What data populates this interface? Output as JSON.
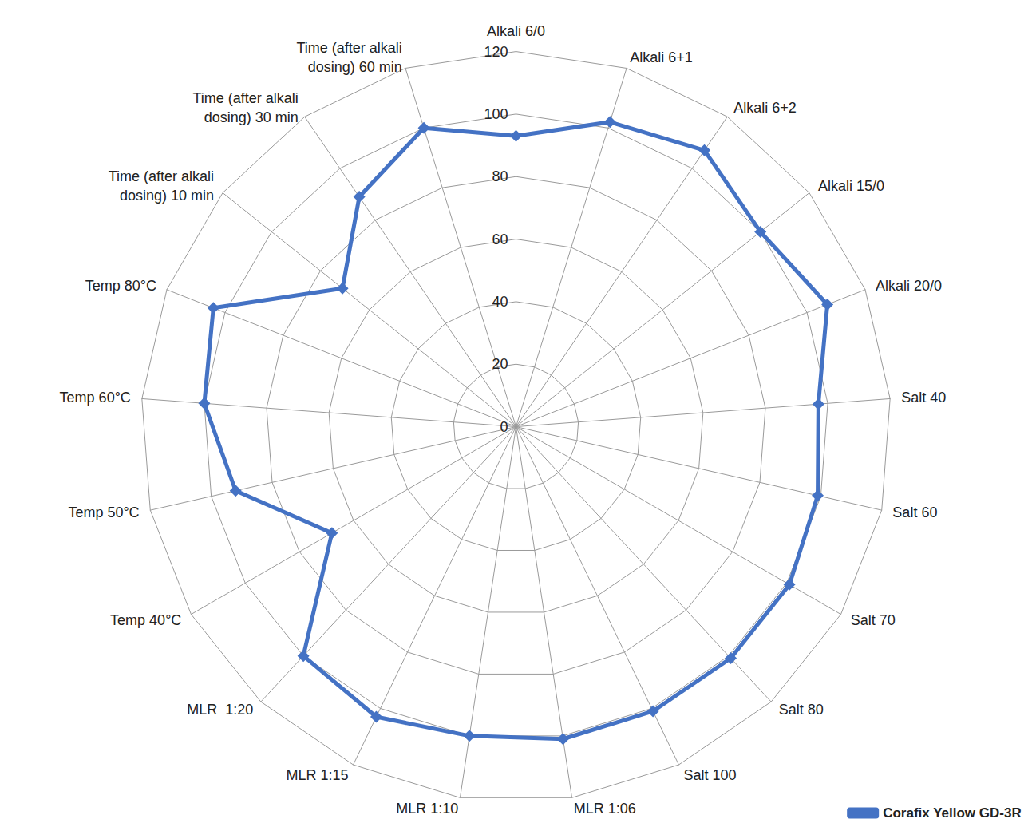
{
  "chart_data": {
    "type": "radar",
    "categories": [
      "Alkali 6/0",
      "Alkali 6+1",
      "Alkali 6+2",
      "Alkali 15/0",
      "Alkali 20/0",
      "Salt 40",
      "Salt 60",
      "Salt 70",
      "Salt 80",
      "Salt 100",
      "MLR 1:06",
      "MLR 1:10",
      "MLR 1:15",
      "MLR  1:20",
      "Temp 40°C",
      "Temp 50°C",
      "Temp 60°C",
      "Temp 80°C",
      "Time (after alkali dosing) 10 min",
      "Time (after alkali dosing) 30 min",
      "Time (after alkali dosing) 60 min"
    ],
    "series": [
      {
        "name": "Corafix Yellow GD-3R",
        "color": "#4472c4",
        "values": [
          93,
          102,
          107,
          100,
          107,
          97,
          99,
          101,
          101,
          101,
          101,
          100,
          103,
          100,
          68,
          92,
          100,
          104,
          71,
          89,
          100
        ]
      }
    ],
    "ylim": [
      0,
      120
    ],
    "yticks": [
      0,
      20,
      40,
      60,
      80,
      100,
      120
    ],
    "grid": true,
    "legend": "bottom-right",
    "marker": "diamond"
  }
}
